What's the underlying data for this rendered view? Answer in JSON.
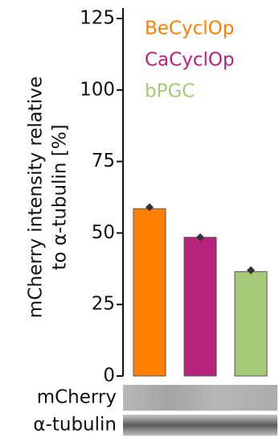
{
  "chart_data": {
    "type": "bar",
    "y_label_lines": [
      "mCherry intensity relative",
      "to α-tubulin [%]"
    ],
    "categories": [
      "BeCyclOp",
      "CaCyclOp",
      "bPGC"
    ],
    "values": [
      58.5,
      48.5,
      36.5
    ],
    "points": [
      59,
      48.5,
      37
    ],
    "colors": [
      "#ff7f00",
      "#b5237a",
      "#a6c97a"
    ],
    "ylim": [
      0,
      125
    ],
    "yticks": [
      0,
      25,
      50,
      75,
      100,
      125
    ]
  },
  "blot_labels": [
    "mCherry",
    "α-tubulin"
  ]
}
